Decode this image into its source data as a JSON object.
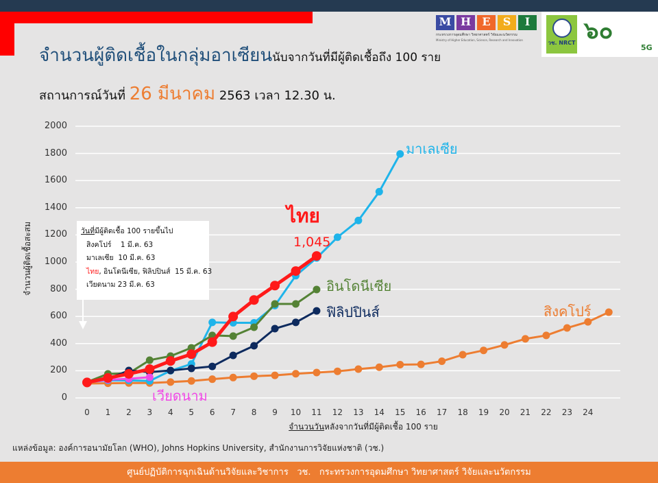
{
  "header": {
    "title_main": "จำนวนผู้ติดเชื้อในกลุ่มอาเซียน",
    "title_sub": "นับจากวันที่มีผู้ติดเชื้อถึง 100 ราย",
    "status_prefix": "สถานการณ์วันที่",
    "status_date": "26 มีนาคม",
    "status_suffix": "2563 เวลา 12.30 น.",
    "logo_mhesi": [
      "M",
      "H",
      "E",
      "S",
      "I"
    ],
    "logo_mhesi_caption": "กระทรวงการอุดมศึกษา วิทยาศาสตร์ วิจัยและนวัตกรรม",
    "logo_mhesi_caption_en": "Ministry of Higher Education, Science, Research and Innovation",
    "logo_nrct": "วช. NRCT",
    "logo_5g": "5G"
  },
  "legend_box": {
    "heading_u": "วันที่",
    "heading": "มีผู้ติดเชื้อ 100 รายขึ้นไป",
    "rows": [
      "สิงคโปร์    1 มี.ค. 63",
      "มาเลเซีย  10 มี.ค. 63"
    ],
    "row_thai": "ไทย",
    "row_thai_rest": ", อินโดนีเซีย, ฟิลิปปินส์  15 มี.ค. 63",
    "row_vn": "เวียดนาม 23 มี.ค. 63"
  },
  "chart_data": {
    "type": "line",
    "title": "จำนวนผู้ติดเชื้อในกลุ่มอาเซียน",
    "xlabel_u": "จำนวนวัน",
    "xlabel": "หลังจากวันที่มีผู้ติดเชื้อ 100 ราย",
    "ylabel": "จำนวนผู้ติดเชื้อสะสม",
    "ylim": [
      0,
      2000
    ],
    "yticks": [
      0,
      200,
      400,
      600,
      800,
      1000,
      1200,
      1400,
      1600,
      1800,
      2000
    ],
    "xticks": [
      0,
      1,
      2,
      3,
      4,
      5,
      6,
      7,
      8,
      9,
      10,
      11,
      12,
      13,
      14,
      15,
      16,
      17,
      18,
      19,
      20,
      21,
      22,
      23,
      24
    ],
    "grid": true,
    "series": [
      {
        "name": "สิงคโปร์",
        "color": "#ed7d31",
        "width": 3,
        "values": [
          106,
          108,
          110,
          110,
          117,
          125,
          138,
          150,
          160,
          166,
          178,
          187,
          196,
          212,
          226,
          245,
          247,
          270,
          318,
          350,
          390,
          435,
          460,
          515,
          560,
          631
        ]
      },
      {
        "name": "มาเลเซีย",
        "color": "#1fb4ea",
        "width": 3,
        "values": [
          117,
          129,
          129,
          125,
          200,
          250,
          556,
          553,
          553,
          680,
          900,
          1030,
          1183,
          1306,
          1518,
          1796
        ]
      },
      {
        "name": "อินโดนีเซีย",
        "color": "#548235",
        "width": 3,
        "values": [
          117,
          177,
          182,
          278,
          308,
          369,
          460,
          455,
          520,
          692,
          692,
          798
        ]
      },
      {
        "name": "ฟิลิปปินส์",
        "color": "#0d2a5e",
        "width": 3,
        "values": [
          111,
          140,
          202,
          190,
          202,
          217,
          232,
          313,
          384,
          510,
          556,
          641
        ]
      },
      {
        "name": "เวียดนาม",
        "color": "#f04ae6",
        "width": 3,
        "values": [
          113,
          134,
          141,
          153
        ]
      },
      {
        "name": "ไทย",
        "color": "#ff1a1a",
        "width": 5,
        "values": [
          114,
          147,
          177,
          212,
          272,
          322,
          411,
          599,
          721,
          827,
          934,
          1045
        ]
      }
    ],
    "annotations": {
      "thai_value": "1,045"
    }
  },
  "source": "แหล่งข้อมูล: องค์การอนามัยโลก (WHO), Johns Hopkins University, สำนักงานการวิจัยแห่งชาติ (วช.)",
  "footer": "ศูนย์ปฏิบัติการฉุกเฉินด้านวิจัยและวิชาการ   วช.   กระทรวงการอุดมศึกษา วิทยาศาสตร์ วิจัยและนวัตกรรม"
}
